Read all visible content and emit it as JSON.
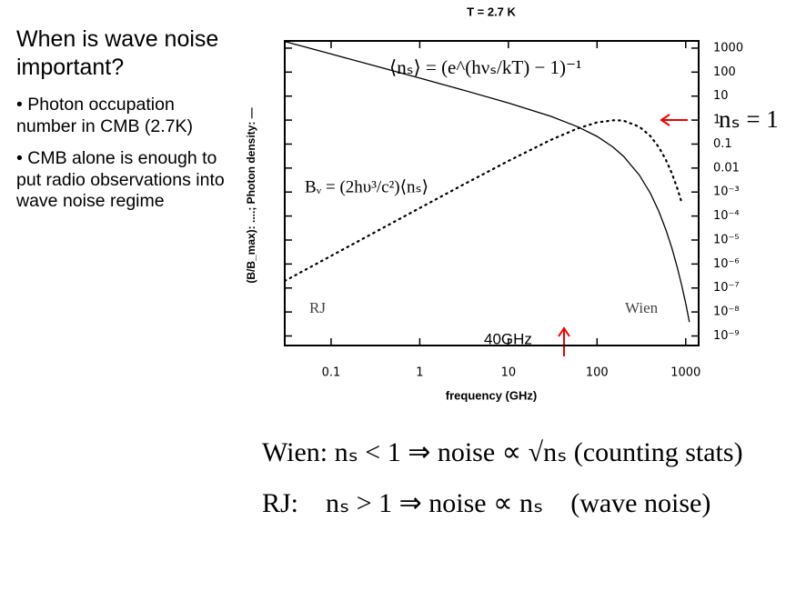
{
  "slide": {
    "heading": "When is wave noise important?",
    "bullets": [
      "• Photon occupation number in CMB (2.7K)",
      "• CMB alone is enough to put radio observations into wave noise regime"
    ],
    "bottom_lines": [
      "Wien: nₛ < 1 ⇒ noise ∝ √nₛ  (counting stats)",
      "RJ:    nₛ > 1 ⇒ noise ∝ nₛ    (wave noise)"
    ]
  },
  "chart_data": {
    "type": "line",
    "title": "T = 2.7 K",
    "x_label": "frequency (GHz)",
    "y_label": "(B/B_max): ....; Photon density: —",
    "x_log": true,
    "y_log": true,
    "xlim": [
      0.03,
      1400
    ],
    "ylim": [
      4e-10,
      2000
    ],
    "xticks": [
      0.1,
      1,
      10,
      100,
      1000
    ],
    "yticks": [
      1000,
      100,
      10,
      1,
      0.1,
      0.01,
      {
        "value": 0.001,
        "label": "10⁻³"
      },
      {
        "value": 0.0001,
        "label": "10⁻⁴"
      },
      {
        "value": 1e-05,
        "label": "10⁻⁵"
      },
      {
        "value": 1e-06,
        "label": "10⁻⁶"
      },
      {
        "value": 1e-07,
        "label": "10⁻⁷"
      },
      {
        "value": 1e-08,
        "label": "10⁻⁸"
      },
      {
        "value": 1e-09,
        "label": "10⁻⁹"
      }
    ],
    "series": [
      {
        "name": "Photon density",
        "color": "#000000",
        "style": "solid",
        "x": [
          0.03,
          0.1,
          0.3,
          1,
          3,
          10,
          30,
          60,
          100,
          150,
          200,
          300,
          400,
          500,
          600,
          700,
          800,
          900,
          1000,
          1100
        ],
        "values": [
          1893,
          568,
          189,
          56.3,
          18.4,
          5.19,
          1.44,
          0.534,
          0.209,
          0.0768,
          0.0305,
          0.0051,
          0.000876,
          0.000151,
          2.59e-05,
          4.45e-06,
          7.7e-07,
          1.31e-07,
          2.26e-08,
          3.8e-09
        ]
      },
      {
        "name": "B/B_max",
        "color": "#000000",
        "style": "dotted",
        "x": [
          0.03,
          0.1,
          0.3,
          1,
          3,
          10,
          30,
          60,
          100,
          160,
          200,
          300,
          400,
          500,
          600,
          700,
          800,
          900
        ],
        "values": [
          1.96e-07,
          2.18e-06,
          1.96e-05,
          0.000216,
          0.00191,
          0.0199,
          0.149,
          0.443,
          0.801,
          1.0,
          0.936,
          0.528,
          0.215,
          0.0724,
          0.0215,
          0.00585,
          0.00151,
          0.000367
        ]
      }
    ],
    "annotations": [
      "⟨nₛ⟩ = (e^(hνₛ/kT) − 1)⁻¹",
      "Bᵥ = (2hυ³/c²)⟨nₛ⟩",
      "nₛ = 1",
      "RJ",
      "Wien",
      "40GHz"
    ]
  }
}
